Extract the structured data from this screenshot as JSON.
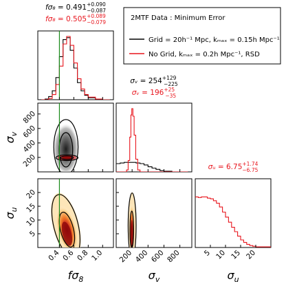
{
  "chart_data": {
    "type": "corner",
    "legend": {
      "title": "2MTF Data :  Minimum Error",
      "placement": "top-right",
      "entries": [
        {
          "label": "Grid = 20h⁻¹ Mpc, kₘₐₓ = 0.15h Mpc⁻¹",
          "color": "#000000"
        },
        {
          "label": "No Grid, kₘₐₓ = 0.2h Mpc⁻¹, RSD",
          "color": "#e8141c"
        }
      ]
    },
    "parameters": [
      "fσ₈",
      "σᵥ",
      "σᵤ"
    ],
    "param_keys": [
      "fs8",
      "sv",
      "su"
    ],
    "axes": {
      "fs8": {
        "label": "fσ₈",
        "range": [
          0.1,
          1.15
        ],
        "ticks": [
          0.4,
          0.6,
          0.8,
          1.0
        ],
        "tick_labels": [
          "0.4",
          "0.6",
          "0.8",
          "1.0"
        ]
      },
      "sv": {
        "label": "σᵥ",
        "range": [
          0,
          950
        ],
        "ticks": [
          200,
          400,
          600,
          800
        ],
        "tick_labels": [
          "200",
          "400",
          "600",
          "800"
        ]
      },
      "su": {
        "label": "σᵤ",
        "range": [
          0,
          25
        ],
        "ticks": [
          5,
          10,
          15,
          20
        ],
        "tick_labels": [
          "5",
          "10",
          "15",
          "20"
        ]
      }
    },
    "annotations": {
      "fs8": [
        {
          "color": "#000000",
          "sym": "fσ₈",
          "value": "0.491",
          "plus": "+0.090",
          "minus": "−0.087"
        },
        {
          "color": "#e8141c",
          "sym": "fσ₈",
          "value": "0.505",
          "plus": "+0.089",
          "minus": "−0.079"
        }
      ],
      "sv": [
        {
          "color": "#000000",
          "sym": "σᵥ",
          "value": "254",
          "plus": "+129",
          "minus": "−225"
        },
        {
          "color": "#e8141c",
          "sym": "σᵥ",
          "value": "196",
          "plus": "+25",
          "minus": "−35"
        }
      ],
      "su": [
        {
          "color": "#e8141c",
          "sym": "σᵤ",
          "value": "6.75",
          "plus": "+1.74",
          "minus": "−6.75"
        }
      ]
    },
    "reference_line": {
      "param": "fs8",
      "value": 0.4,
      "color": "#1a8a1a"
    },
    "marginals": {
      "fs8": {
        "black": {
          "x": [
            0.15,
            0.2,
            0.25,
            0.3,
            0.35,
            0.4,
            0.45,
            0.5,
            0.55,
            0.6,
            0.65,
            0.7,
            0.75,
            0.8,
            0.9,
            1.0,
            1.1
          ],
          "y": [
            0,
            0.01,
            0.05,
            0.14,
            0.35,
            0.68,
            0.95,
            0.98,
            0.78,
            0.5,
            0.27,
            0.14,
            0.07,
            0.03,
            0.01,
            0,
            0
          ]
        },
        "red": {
          "x": [
            0.15,
            0.2,
            0.25,
            0.3,
            0.35,
            0.4,
            0.45,
            0.5,
            0.55,
            0.6,
            0.65,
            0.7,
            0.75,
            0.8,
            0.9,
            1.0,
            1.1
          ],
          "y": [
            0,
            0,
            0.02,
            0.08,
            0.24,
            0.53,
            0.88,
            1.0,
            0.86,
            0.58,
            0.33,
            0.17,
            0.08,
            0.04,
            0.01,
            0,
            0
          ]
        }
      },
      "sv": {
        "black": {
          "x": [
            0,
            50,
            100,
            150,
            200,
            250,
            300,
            350,
            400,
            450,
            500,
            550,
            600,
            650,
            700,
            800,
            900
          ],
          "y": [
            0.13,
            0.14,
            0.15,
            0.15,
            0.15,
            0.14,
            0.13,
            0.11,
            0.08,
            0.06,
            0.04,
            0.02,
            0.01,
            0.01,
            0,
            0,
            0
          ]
        },
        "red": {
          "x": [
            0,
            100,
            130,
            150,
            170,
            185,
            196,
            210,
            225,
            245,
            270,
            300,
            400,
            600,
            800,
            900
          ],
          "y": [
            0,
            0,
            0.03,
            0.18,
            0.55,
            0.9,
            1.0,
            0.88,
            0.58,
            0.2,
            0.03,
            0,
            0,
            0,
            0,
            0
          ]
        }
      },
      "su": {
        "red": {
          "x": [
            0,
            1,
            2,
            3,
            4,
            5,
            6,
            7,
            8,
            9,
            10,
            11,
            12,
            13,
            14,
            15,
            16,
            17,
            18,
            19,
            20,
            21,
            22,
            23,
            24,
            25
          ],
          "y": [
            0.8,
            0.79,
            0.8,
            0.8,
            0.78,
            0.77,
            0.74,
            0.7,
            0.64,
            0.56,
            0.48,
            0.4,
            0.32,
            0.25,
            0.18,
            0.12,
            0.08,
            0.05,
            0.03,
            0.02,
            0.01,
            0.01,
            0.01,
            0.01,
            0.01,
            0.01
          ]
        }
      }
    },
    "joint": {
      "sv_vs_fs8": {
        "black_mean": [
          0.49,
          200
        ],
        "black_sigma": [
          0.075,
          190
        ],
        "red_mean": [
          0.505,
          196
        ],
        "red_sigma": [
          0.07,
          25
        ],
        "red_corr": 0.35
      },
      "su_vs_fs8": {
        "black_mean": [
          0.49,
          8
        ],
        "black_sigma": [
          0.075,
          5.5
        ],
        "red_mean": [
          0.505,
          7.5
        ],
        "red_sigma": [
          0.07,
          5.0
        ],
        "red_corr": 0.35
      },
      "su_vs_sv": {
        "black_mean": [
          200,
          8
        ],
        "black_sigma": [
          25,
          5.5
        ],
        "red_mean": [
          196,
          7.5
        ],
        "red_sigma": [
          20,
          5.0
        ]
      }
    },
    "grid": false,
    "contour_levels": [
      "68%",
      "95%"
    ]
  }
}
